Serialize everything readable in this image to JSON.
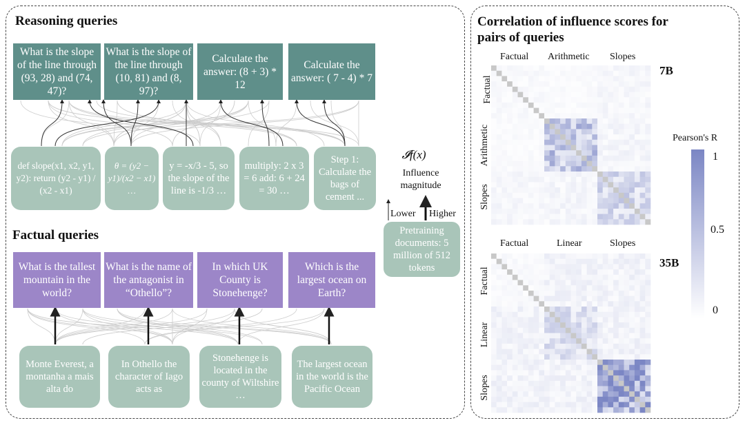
{
  "reasoning": {
    "title": "Reasoning queries",
    "queries": [
      "What is the slope of the line through (93, 28) and (74, 47)?",
      "What is the slope of the line through (10, 81) and (8, 97)?",
      "Calculate the answer: (8 + 3) * 12",
      "Calculate the answer: ( 7 - 4) * 7"
    ],
    "documents": [
      "def slope(x1, x2, y1, y2): return (y2 - y1) / (x2 - x1)",
      "θ = (y2 − y1)/(x2 − x1) …",
      "y = -x/3 - 5, so the slope of the line is -1/3 …",
      "multiply: 2 x 3 = 6 add: 6 + 24 = 30 …",
      "Step 1: Calculate the bags of cement ..."
    ]
  },
  "factual": {
    "title": "Factual queries",
    "queries": [
      "What is the tallest mountain in the world?",
      "What is the name of the antagonist in “Othello”?",
      "In which UK County is Stonehenge?",
      "Which is the largest ocean on Earth?"
    ],
    "documents": [
      "Monte Everest, a montanha a mais alta do",
      "In Othello the character of Iago acts as",
      "Stonehenge is located in the county of Wiltshire …",
      "The largest ocean in the world is the Pacific Ocean"
    ]
  },
  "influence": {
    "formula": "𝓘f(x)",
    "label": "Influence magnitude",
    "lower": "Lower",
    "higher": "Higher",
    "pretraining": "Pretraining documents: 5 million of 512 tokens"
  },
  "colors": {
    "reasoning_query": "#5f8f8a",
    "factual_query": "#9c86c8",
    "document": "#a9c5b9",
    "heat_max": "#7b86c4"
  },
  "chart_data": [
    {
      "type": "heatmap",
      "title": "Correlation of influence scores for pairs of queries",
      "model": "7B",
      "groups": [
        "Factual",
        "Arithmetic",
        "Slopes"
      ],
      "group_sizes": [
        10,
        10,
        10
      ],
      "block_mean_r": [
        [
          0.05,
          0.04,
          0.07
        ],
        [
          0.04,
          0.45,
          0.08
        ],
        [
          0.07,
          0.08,
          0.3
        ]
      ],
      "colorbar": {
        "label": "Pearson's R",
        "ticks": [
          0,
          0.5,
          1
        ],
        "range": [
          0,
          1
        ]
      }
    },
    {
      "type": "heatmap",
      "model": "35B",
      "groups": [
        "Factual",
        "Linear",
        "Slopes"
      ],
      "group_sizes": [
        10,
        10,
        10
      ],
      "block_mean_r": [
        [
          0.05,
          0.1,
          0.1
        ],
        [
          0.1,
          0.25,
          0.1
        ],
        [
          0.1,
          0.1,
          0.7
        ]
      ],
      "colorbar": {
        "label": "Pearson's R",
        "ticks": [
          0,
          0.5,
          1
        ],
        "range": [
          0,
          1
        ]
      }
    }
  ]
}
